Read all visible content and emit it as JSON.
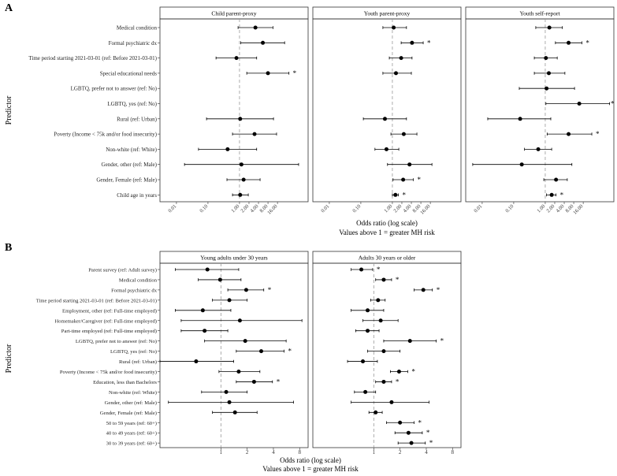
{
  "figure": {
    "panel_a_letter": "A",
    "panel_b_letter": "B",
    "significance_marker": "*"
  },
  "chart_data": [
    {
      "type": "forest",
      "panel": "A",
      "ylabel": "Predictor",
      "xlabel": "Odds ratio (log scale)",
      "xlabel_sub": "Values above 1 = greater MH risk",
      "xscale": "log",
      "xlim": [
        0.003,
        150
      ],
      "xticks": [
        0.01,
        0.1,
        1,
        2,
        4,
        8,
        16
      ],
      "xtick_labels": [
        "0.01",
        "0.10",
        "1.00",
        "2.00",
        "4.00",
        "8.00",
        "16.00"
      ],
      "reference_line": 1,
      "predictors": [
        "Medical condition",
        "Formal psychiatric dx",
        "Time period starting 2021-03-01 (ref: Before 2021-03-01)",
        "Special educational needs",
        "LGBTQ, prefer not to answer (ref: No)",
        "LGBTQ, yes (ref: No)",
        "Rural (ref: Urban)",
        "Poverty (Income < 75k and/or food insecurity)",
        "Non-white (ref: White)",
        "Gender, other (ref: Male)",
        "Gender, Female (ref: Male)",
        "Child age in years"
      ],
      "facets": [
        {
          "title": "Child parent-proxy",
          "estimates": [
            {
              "or": 3.2,
              "lo": 0.9,
              "hi": 11.5,
              "sig": false
            },
            {
              "or": 5.5,
              "lo": 1.1,
              "hi": 27,
              "sig": false
            },
            {
              "or": 0.8,
              "lo": 0.18,
              "hi": 3.5,
              "sig": false
            },
            {
              "or": 8,
              "lo": 1.7,
              "hi": 37,
              "sig": true
            },
            null,
            null,
            {
              "or": 1.05,
              "lo": 0.09,
              "hi": 12,
              "sig": false
            },
            {
              "or": 3,
              "lo": 0.6,
              "hi": 15,
              "sig": false
            },
            {
              "or": 0.42,
              "lo": 0.05,
              "hi": 3.5,
              "sig": false
            },
            {
              "or": 1.15,
              "lo": 0.018,
              "hi": 75,
              "sig": false
            },
            {
              "or": 1.35,
              "lo": 0.4,
              "hi": 4.5,
              "sig": false
            },
            {
              "or": 1.05,
              "lo": 0.6,
              "hi": 1.9,
              "sig": false
            }
          ]
        },
        {
          "title": "Youth parent-proxy",
          "estimates": [
            {
              "or": 1.1,
              "lo": 0.5,
              "hi": 2.8,
              "sig": false
            },
            {
              "or": 4.2,
              "lo": 1.9,
              "hi": 9.5,
              "sig": true
            },
            {
              "or": 1.9,
              "lo": 0.8,
              "hi": 4.2,
              "sig": false
            },
            {
              "or": 1.3,
              "lo": 0.5,
              "hi": 4,
              "sig": false
            },
            null,
            null,
            {
              "or": 0.58,
              "lo": 0.12,
              "hi": 2.8,
              "sig": false
            },
            {
              "or": 2.3,
              "lo": 0.9,
              "hi": 6,
              "sig": false
            },
            {
              "or": 0.65,
              "lo": 0.28,
              "hi": 1.6,
              "sig": false
            },
            {
              "or": 3.5,
              "lo": 0.7,
              "hi": 18,
              "sig": false
            },
            {
              "or": 2.2,
              "lo": 1.05,
              "hi": 4.6,
              "sig": true
            },
            {
              "or": 1.25,
              "lo": 1.0,
              "hi": 1.55,
              "sig": true
            }
          ]
        },
        {
          "title": "Youth self-report",
          "estimates": [
            {
              "or": 1.35,
              "lo": 0.5,
              "hi": 3.5,
              "sig": false
            },
            {
              "or": 5.5,
              "lo": 2.1,
              "hi": 14.5,
              "sig": true
            },
            {
              "or": 1.05,
              "lo": 0.45,
              "hi": 2.4,
              "sig": false
            },
            {
              "or": 1.3,
              "lo": 0.45,
              "hi": 4.2,
              "sig": false
            },
            {
              "or": 1.1,
              "lo": 0.15,
              "hi": 8.5,
              "sig": false
            },
            {
              "or": 12,
              "lo": 1.05,
              "hi": 110,
              "sig": true
            },
            {
              "or": 0.16,
              "lo": 0.015,
              "hi": 1.5,
              "sig": false
            },
            {
              "or": 5.5,
              "lo": 1.15,
              "hi": 30,
              "sig": true
            },
            {
              "or": 0.6,
              "lo": 0.22,
              "hi": 1.6,
              "sig": false
            },
            {
              "or": 0.18,
              "lo": 0.005,
              "hi": 7,
              "sig": false
            },
            {
              "or": 2.2,
              "lo": 0.9,
              "hi": 5,
              "sig": false
            },
            {
              "or": 1.6,
              "lo": 1.1,
              "hi": 2.2,
              "sig": true
            }
          ]
        }
      ]
    },
    {
      "type": "forest",
      "panel": "B",
      "ylabel": "Predictor",
      "xlabel": "Odds ratio (log scale)",
      "xlabel_sub": "Values above 1 = greater MH risk",
      "xscale": "log",
      "xlim": [
        0.2,
        10
      ],
      "xticks": [
        1,
        2,
        4,
        8
      ],
      "xtick_labels": [
        "1",
        "2",
        "4",
        "8"
      ],
      "reference_line": 1,
      "predictors": [
        "Parent survey (ref: Adult survey)",
        "Medical condition",
        "Formal psychiatric dx",
        "Time period starting 2021-03-01 (ref: Before 2021-03-01)",
        "Employment, other (ref: Full-time employed)",
        "Homemaker/Caregiver (ref: Full-time employed)",
        "Part-time employed (ref: Full-time employed)",
        "LGBTQ, prefer not to answer (ref: No)",
        "LGBTQ, yes (ref: No)",
        "Rural (ref: Urban)",
        "Poverty (Income < 75k and/or food insecurity)",
        "Education, less than Bachelors",
        "Non-white (ref: White)",
        "Gender, other (ref: Male)",
        "Gender, Female (ref: Male)",
        "50 to 59 years (ref: 60+)",
        "40 to 49 years (ref: 60+)",
        "30 to 39 years (ref: 60+)"
      ],
      "facets": [
        {
          "title": "Young adults under 30 years",
          "estimates": [
            {
              "or": 0.7,
              "lo": 0.3,
              "hi": 1.6,
              "sig": false
            },
            {
              "or": 0.98,
              "lo": 0.55,
              "hi": 1.7,
              "sig": false
            },
            {
              "or": 1.95,
              "lo": 1.2,
              "hi": 3.1,
              "sig": true
            },
            {
              "or": 1.25,
              "lo": 0.8,
              "hi": 2.0,
              "sig": false
            },
            {
              "or": 0.62,
              "lo": 0.3,
              "hi": 1.3,
              "sig": false
            },
            {
              "or": 1.65,
              "lo": 0.35,
              "hi": 8.5,
              "sig": false
            },
            {
              "or": 0.65,
              "lo": 0.35,
              "hi": 1.2,
              "sig": false
            },
            {
              "or": 1.9,
              "lo": 0.65,
              "hi": 5.6,
              "sig": false
            },
            {
              "or": 2.9,
              "lo": 1.5,
              "hi": 5.3,
              "sig": true
            },
            {
              "or": 0.52,
              "lo": 0.2,
              "hi": 1.4,
              "sig": false
            },
            {
              "or": 1.6,
              "lo": 0.95,
              "hi": 2.8,
              "sig": false
            },
            {
              "or": 2.4,
              "lo": 1.5,
              "hi": 3.9,
              "sig": true
            },
            {
              "or": 1.15,
              "lo": 0.6,
              "hi": 2.0,
              "sig": false
            },
            {
              "or": 1.25,
              "lo": 0.25,
              "hi": 6.8,
              "sig": false
            },
            {
              "or": 1.45,
              "lo": 0.8,
              "hi": 2.6,
              "sig": false
            },
            null,
            null,
            null
          ]
        },
        {
          "title": "Adults 30 years or older",
          "estimates": [
            {
              "or": 0.72,
              "lo": 0.55,
              "hi": 0.97,
              "sig": true
            },
            {
              "or": 1.3,
              "lo": 1.05,
              "hi": 1.6,
              "sig": true
            },
            {
              "or": 3.7,
              "lo": 2.9,
              "hi": 4.7,
              "sig": true
            },
            {
              "or": 1.12,
              "lo": 0.92,
              "hi": 1.35,
              "sig": false
            },
            {
              "or": 0.85,
              "lo": 0.55,
              "hi": 1.3,
              "sig": false
            },
            {
              "or": 1.2,
              "lo": 0.75,
              "hi": 1.9,
              "sig": false
            },
            {
              "or": 0.85,
              "lo": 0.62,
              "hi": 1.15,
              "sig": false
            },
            {
              "or": 2.6,
              "lo": 1.3,
              "hi": 5.2,
              "sig": true
            },
            {
              "or": 1.3,
              "lo": 0.85,
              "hi": 2.0,
              "sig": false
            },
            {
              "or": 0.75,
              "lo": 0.5,
              "hi": 1.1,
              "sig": false
            },
            {
              "or": 1.95,
              "lo": 1.55,
              "hi": 2.45,
              "sig": true
            },
            {
              "or": 1.3,
              "lo": 1.05,
              "hi": 1.6,
              "sig": true
            },
            {
              "or": 0.8,
              "lo": 0.6,
              "hi": 1.05,
              "sig": false
            },
            {
              "or": 1.6,
              "lo": 0.55,
              "hi": 4.3,
              "sig": false
            },
            {
              "or": 1.05,
              "lo": 0.88,
              "hi": 1.25,
              "sig": false
            },
            {
              "or": 2.0,
              "lo": 1.4,
              "hi": 2.9,
              "sig": true
            },
            {
              "or": 2.5,
              "lo": 1.75,
              "hi": 3.6,
              "sig": true
            },
            {
              "or": 2.7,
              "lo": 1.9,
              "hi": 3.9,
              "sig": true
            }
          ]
        }
      ]
    }
  ]
}
